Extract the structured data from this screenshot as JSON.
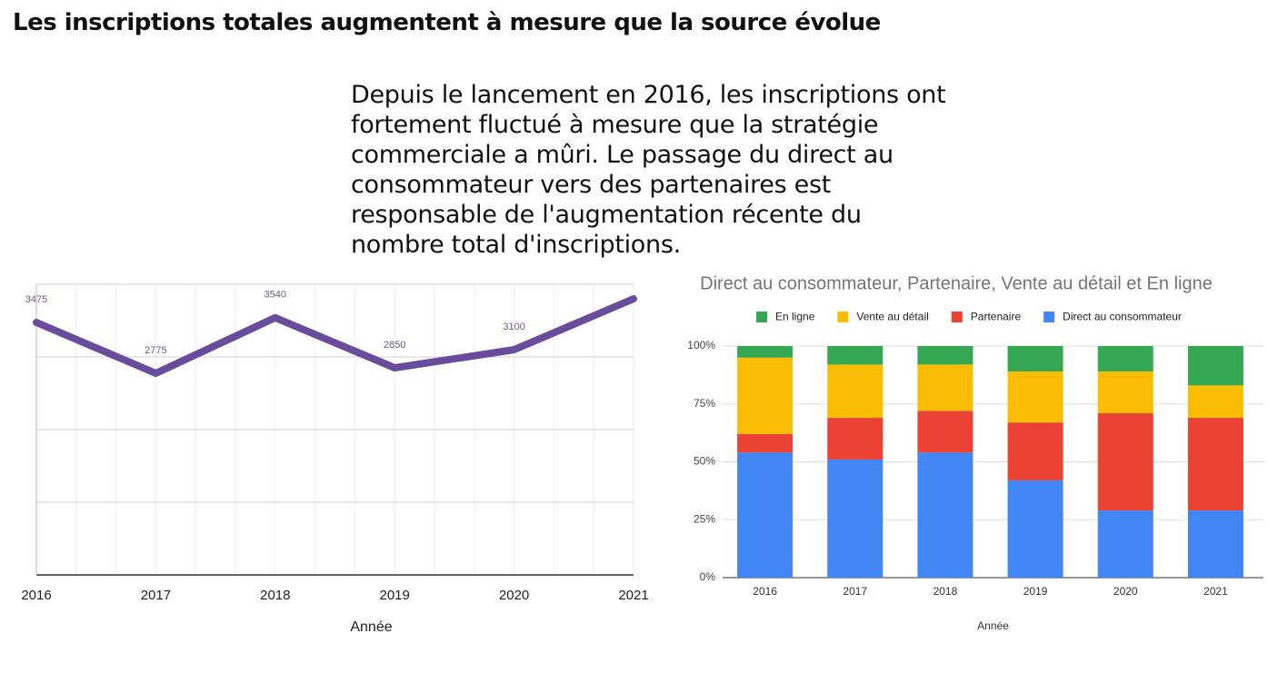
{
  "header": {
    "title": "Les inscriptions totales augmentent à mesure que la source évolue",
    "paragraph": "Depuis le lancement en 2016, les inscriptions ont fortement fluctué à mesure que la stratégie commerciale a mûri. Le passage du direct au consommateur vers des partenaires est responsable de l'augmentation récente du nombre total d'inscriptions."
  },
  "chart_data": [
    {
      "type": "line",
      "x_label": "Année",
      "categories": [
        "2016",
        "2017",
        "2018",
        "2019",
        "2020",
        "2021"
      ],
      "values": [
        3475,
        2775,
        3540,
        2850,
        3100,
        3800
      ],
      "value_labels": [
        "3475",
        "2775",
        "3540",
        "2850",
        "3100",
        null
      ],
      "color": "#6a4c9c",
      "ylim": [
        0,
        4000
      ],
      "yticks": [
        0,
        1000,
        2000,
        3000,
        4000
      ],
      "ytick_labels": false,
      "grid": true
    },
    {
      "type": "bar",
      "stacked": true,
      "title": "Direct au consommateur, Partenaire, Vente au détail et En ligne",
      "x_label": "Année",
      "legend": "top",
      "categories": [
        "2016",
        "2017",
        "2018",
        "2019",
        "2020",
        "2021"
      ],
      "series": [
        {
          "name": "En ligne",
          "color": "#34a853",
          "values": [
            5,
            8,
            8,
            11,
            11,
            17
          ]
        },
        {
          "name": "Vente au détail",
          "color": "#fbbc04",
          "values": [
            33,
            23,
            20,
            22,
            18,
            14
          ]
        },
        {
          "name": "Partenaire",
          "color": "#ea4335",
          "values": [
            8,
            18,
            18,
            25,
            42,
            40
          ]
        },
        {
          "name": "Direct au consommateur",
          "color": "#4285f4",
          "values": [
            54,
            51,
            54,
            42,
            29,
            29
          ]
        }
      ],
      "ylim": [
        0,
        100
      ],
      "yticks": [
        {
          "value": 0,
          "label": "0%"
        },
        {
          "value": 25,
          "label": "25%"
        },
        {
          "value": 50,
          "label": "50%"
        },
        {
          "value": 75,
          "label": "75%"
        },
        {
          "value": 100,
          "label": "100%"
        }
      ],
      "grid": true
    }
  ]
}
